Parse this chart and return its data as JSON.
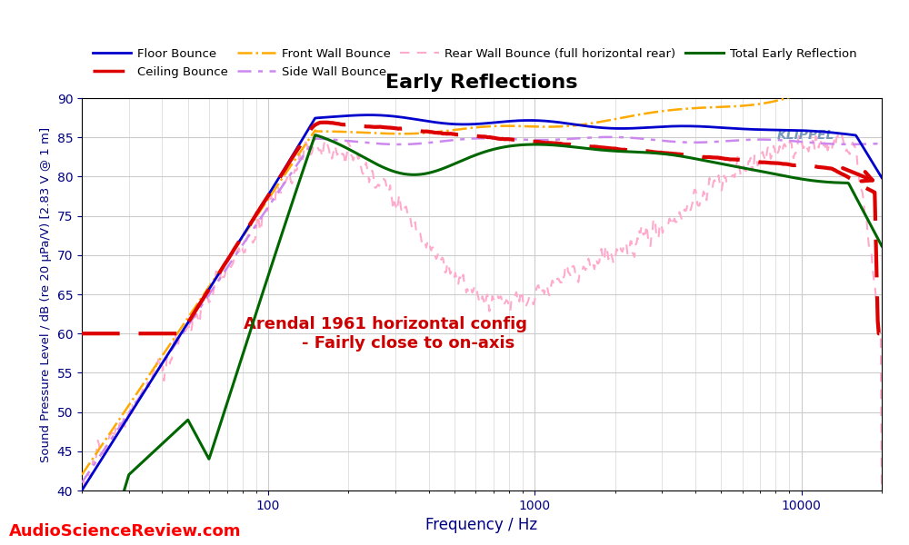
{
  "title": "Early Reflections",
  "xlabel": "Frequency / Hz",
  "ylabel": "Sound Pressure Level / dB (re 20 μPa/V) [2.83 V @ 1 m]",
  "xlim": [
    20,
    20000
  ],
  "ylim": [
    40,
    90
  ],
  "yticks": [
    40,
    45,
    50,
    55,
    60,
    65,
    70,
    75,
    80,
    85,
    90
  ],
  "annotation_line1": "Arendal 1961 horizontal config",
  "annotation_line2": "        - Fairly close to on-axis",
  "annotation_color": "#cc0000",
  "watermark": "AudioScienceReview.com",
  "klippel_text": "KLIPPEL",
  "background_color": "#ffffff",
  "grid_color": "#cccccc",
  "series": {
    "floor_bounce": {
      "label": "Floor Bounce",
      "color": "#0000cc",
      "linestyle": "solid",
      "linewidth": 2.0,
      "zorder": 5
    },
    "ceiling_bounce": {
      "label": "Ceiling Bounce",
      "color": "#dd0000",
      "linestyle": "dashed",
      "linewidth": 3.0,
      "zorder": 6
    },
    "front_wall_bounce": {
      "label": "Front Wall Bounce",
      "color": "#ffaa00",
      "linestyle": "dashdot",
      "linewidth": 1.8,
      "zorder": 4
    },
    "side_wall_bounce": {
      "label": "Side Wall Bounce",
      "color": "#cc88ee",
      "linestyle": "dashed",
      "linewidth": 1.8,
      "zorder": 3
    },
    "rear_wall_bounce": {
      "label": "Rear Wall Bounce (full horizontal rear)",
      "color": "#ffaacc",
      "linestyle": "dashed",
      "linewidth": 1.5,
      "zorder": 2
    },
    "total_early": {
      "label": "Total Early Reflection",
      "color": "#006600",
      "linestyle": "solid",
      "linewidth": 2.2,
      "zorder": 7
    }
  }
}
